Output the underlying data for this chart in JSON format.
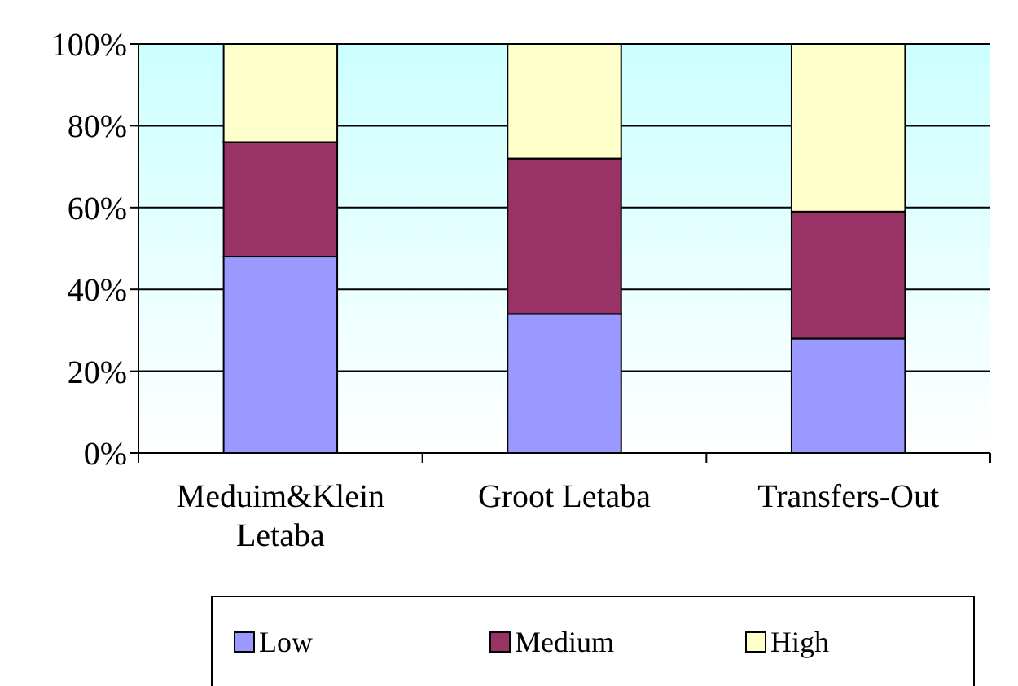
{
  "chart_data": {
    "type": "bar",
    "stacked": true,
    "categories": [
      "Meduim&Klein Letaba",
      "Groot Letaba",
      "Transfers-Out"
    ],
    "series": [
      {
        "name": "Low",
        "color": "#9999ff",
        "values": [
          48,
          34,
          28
        ]
      },
      {
        "name": "Medium",
        "color": "#993366",
        "values": [
          28,
          38,
          31
        ]
      },
      {
        "name": "High",
        "color": "#ffffcc",
        "values": [
          24,
          28,
          41
        ]
      }
    ],
    "ylim": [
      0,
      100
    ],
    "yticks": [
      {
        "value": 0,
        "label": "0%"
      },
      {
        "value": 20,
        "label": "20%"
      },
      {
        "value": 40,
        "label": "40%"
      },
      {
        "value": 60,
        "label": "60%"
      },
      {
        "value": 80,
        "label": "80%"
      },
      {
        "value": 100,
        "label": "100%"
      }
    ],
    "grid": "y",
    "legend": "bottom"
  }
}
